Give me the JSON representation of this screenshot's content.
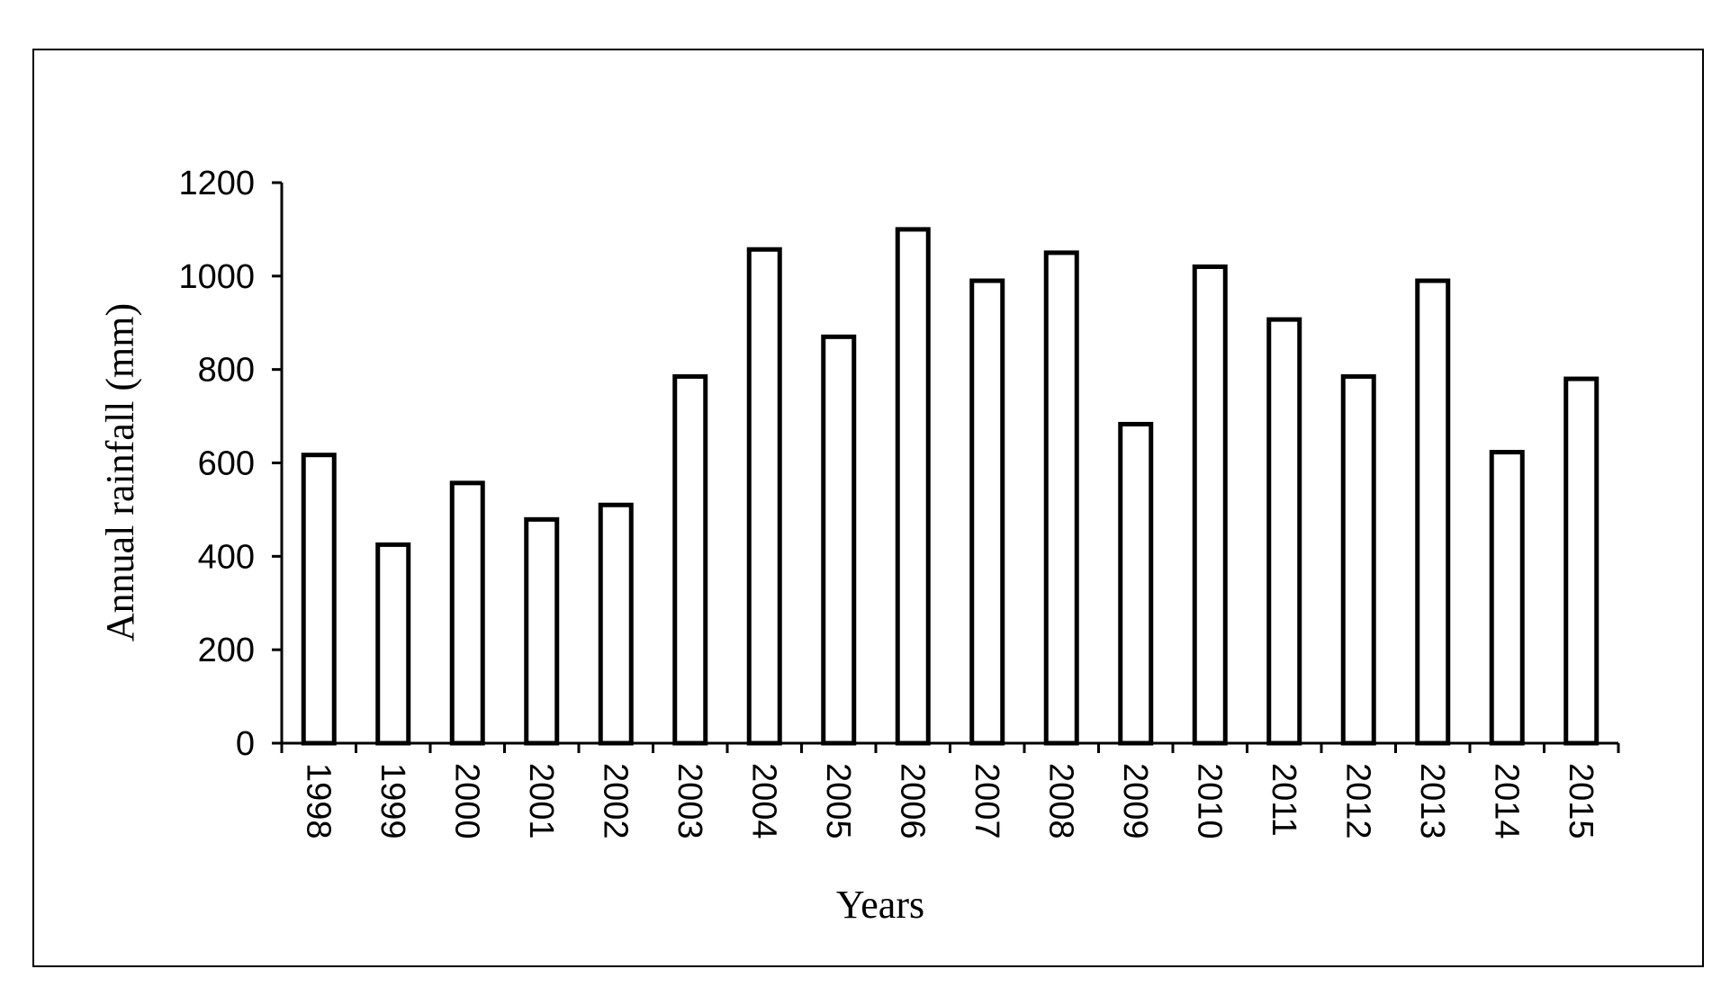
{
  "chart_data": {
    "type": "bar",
    "title": "",
    "xlabel": "Years",
    "ylabel": "Annual  rainfall  (mm)",
    "categories": [
      "1998",
      "1999",
      "2000",
      "2001",
      "2002",
      "2003",
      "2004",
      "2005",
      "2006",
      "2007",
      "2008",
      "2009",
      "2010",
      "2011",
      "2012",
      "2013",
      "2014",
      "2015"
    ],
    "values": [
      617,
      425,
      557,
      479,
      510,
      785,
      1057,
      870,
      1100,
      990,
      1050,
      683,
      1020,
      907,
      785,
      990,
      623,
      780
    ],
    "ylim": [
      0,
      1200
    ],
    "yticks": [
      0,
      200,
      400,
      600,
      800,
      1000,
      1200
    ],
    "grid": false,
    "legend": "none",
    "bar_fill": "#ffffff",
    "bar_stroke": "#000000"
  }
}
